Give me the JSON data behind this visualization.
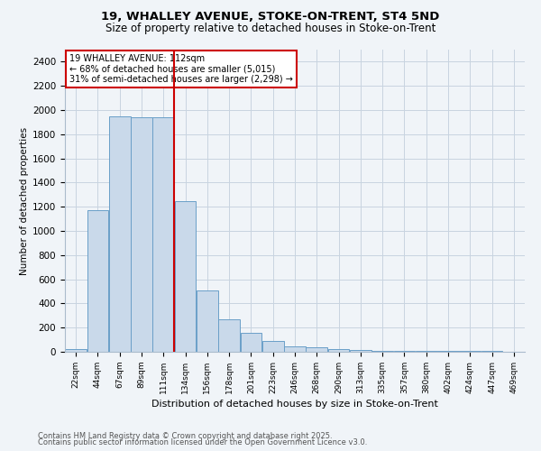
{
  "title1": "19, WHALLEY AVENUE, STOKE-ON-TRENT, ST4 5ND",
  "title2": "Size of property relative to detached houses in Stoke-on-Trent",
  "xlabel": "Distribution of detached houses by size in Stoke-on-Trent",
  "ylabel": "Number of detached properties",
  "footnote1": "Contains HM Land Registry data © Crown copyright and database right 2025.",
  "footnote2": "Contains public sector information licensed under the Open Government Licence v3.0.",
  "annotation_title": "19 WHALLEY AVENUE: 112sqm",
  "annotation_line1": "← 68% of detached houses are smaller (5,015)",
  "annotation_line2": "31% of semi-detached houses are larger (2,298) →",
  "property_bin_index": 4,
  "bar_color": "#c9d9ea",
  "bar_edge_color": "#6a9fc8",
  "line_color": "#cc0000",
  "annotation_box_edgecolor": "#cc0000",
  "background_color": "#f0f4f8",
  "grid_color": "#c8d4e0",
  "categories": [
    "22sqm",
    "44sqm",
    "67sqm",
    "89sqm",
    "111sqm",
    "134sqm",
    "156sqm",
    "178sqm",
    "201sqm",
    "223sqm",
    "246sqm",
    "268sqm",
    "290sqm",
    "313sqm",
    "335sqm",
    "357sqm",
    "380sqm",
    "402sqm",
    "424sqm",
    "447sqm",
    "469sqm"
  ],
  "values": [
    22,
    1175,
    1950,
    1940,
    1940,
    1250,
    510,
    270,
    155,
    88,
    45,
    35,
    20,
    14,
    10,
    6,
    6,
    5,
    5,
    5,
    2
  ],
  "ylim": [
    0,
    2500
  ],
  "yticks": [
    0,
    200,
    400,
    600,
    800,
    1000,
    1200,
    1400,
    1600,
    1800,
    2000,
    2200,
    2400
  ]
}
